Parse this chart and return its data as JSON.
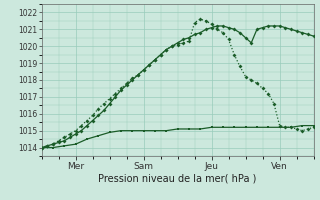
{
  "background_color": "#cce8dd",
  "grid_color": "#99ccbb",
  "line_color": "#1a5c28",
  "xlabel": "Pression niveau de la mer( hPa )",
  "ylim": [
    1013.5,
    1022.5
  ],
  "yticks": [
    1014,
    1015,
    1016,
    1017,
    1018,
    1019,
    1020,
    1021,
    1022
  ],
  "xlim": [
    0,
    48
  ],
  "xtick_positions": [
    6,
    18,
    30,
    42
  ],
  "xtick_labels": [
    "Mer",
    "Sam",
    "Jeu",
    "Ven"
  ],
  "series1_x": [
    0,
    1,
    2,
    3,
    4,
    5,
    6,
    7,
    8,
    9,
    10,
    11,
    12,
    13,
    14,
    15,
    16,
    17,
    18,
    19,
    20,
    21,
    22,
    23,
    24,
    25,
    26,
    27,
    28,
    29,
    30,
    31,
    32,
    33,
    34,
    35,
    36,
    37,
    38,
    39,
    40,
    41,
    42,
    43,
    44,
    45,
    46,
    47,
    48
  ],
  "series1_y": [
    1014.0,
    1014.1,
    1014.2,
    1014.4,
    1014.6,
    1014.8,
    1015.0,
    1015.3,
    1015.6,
    1015.9,
    1016.3,
    1016.6,
    1016.9,
    1017.2,
    1017.5,
    1017.8,
    1018.1,
    1018.3,
    1018.6,
    1018.9,
    1019.2,
    1019.5,
    1019.8,
    1020.0,
    1020.1,
    1020.2,
    1020.3,
    1021.4,
    1021.6,
    1021.5,
    1021.3,
    1021.0,
    1020.8,
    1020.4,
    1019.5,
    1018.8,
    1018.2,
    1018.0,
    1017.8,
    1017.5,
    1017.2,
    1016.6,
    1015.3,
    1015.2,
    1015.2,
    1015.1,
    1015.0,
    1015.1,
    1015.2
  ],
  "series2_x": [
    0,
    1,
    2,
    3,
    4,
    5,
    6,
    7,
    8,
    9,
    10,
    11,
    12,
    13,
    14,
    15,
    16,
    17,
    18,
    19,
    20,
    21,
    22,
    23,
    24,
    25,
    26,
    27,
    28,
    29,
    30,
    31,
    32,
    33,
    34,
    35,
    36,
    37,
    38,
    39,
    40,
    41,
    42,
    43,
    44,
    45,
    46,
    47,
    48
  ],
  "series2_y": [
    1014.0,
    1014.1,
    1014.2,
    1014.3,
    1014.4,
    1014.6,
    1014.8,
    1015.0,
    1015.3,
    1015.6,
    1015.9,
    1016.2,
    1016.6,
    1017.0,
    1017.4,
    1017.7,
    1018.0,
    1018.3,
    1018.6,
    1018.9,
    1019.2,
    1019.5,
    1019.8,
    1020.0,
    1020.2,
    1020.4,
    1020.5,
    1020.7,
    1020.8,
    1021.0,
    1021.1,
    1021.2,
    1021.2,
    1021.1,
    1021.0,
    1020.8,
    1020.5,
    1020.2,
    1021.0,
    1021.1,
    1021.2,
    1021.2,
    1021.2,
    1021.1,
    1021.0,
    1020.9,
    1020.8,
    1020.7,
    1020.6
  ],
  "series3_x": [
    0,
    2,
    4,
    6,
    8,
    10,
    12,
    14,
    16,
    18,
    20,
    22,
    24,
    26,
    28,
    30,
    32,
    34,
    36,
    38,
    40,
    42,
    44,
    46,
    48
  ],
  "series3_y": [
    1014.0,
    1014.0,
    1014.1,
    1014.2,
    1014.5,
    1014.7,
    1014.9,
    1015.0,
    1015.0,
    1015.0,
    1015.0,
    1015.0,
    1015.1,
    1015.1,
    1015.1,
    1015.2,
    1015.2,
    1015.2,
    1015.2,
    1015.2,
    1015.2,
    1015.2,
    1015.2,
    1015.3,
    1015.3
  ]
}
